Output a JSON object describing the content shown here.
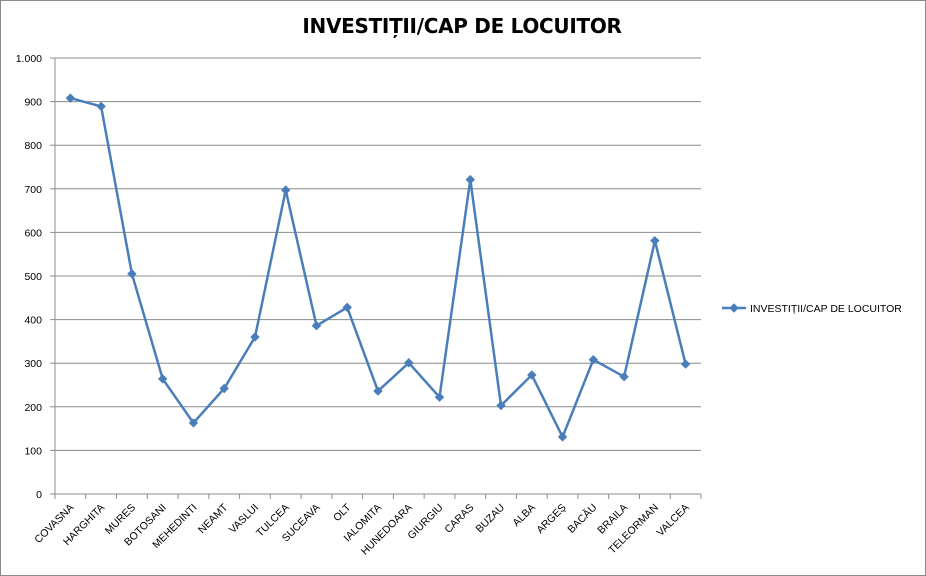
{
  "chart_data": {
    "type": "line",
    "title": "INVESTIȚII/CAP DE LOCUITOR",
    "categories": [
      "COVASNA",
      "HARGHITA",
      "MURES",
      "BOTOSANI",
      "MEHEDINTI",
      "NEAMT",
      "VASLUI",
      "TULCEA",
      "SUCEAVA",
      "OLT",
      "IALOMITA",
      "HUNEDOARA",
      "GIURGIU",
      "CARAS",
      "BUZAU",
      "ALBA",
      "ARGEȘ",
      "BACĂU",
      "BRAILA",
      "TELEORMAN",
      "VALCEA"
    ],
    "series": [
      {
        "name": "INVESTIȚII/CAP  DE LOCUITOR",
        "values": [
          908,
          889,
          505,
          264,
          163,
          242,
          360,
          697,
          386,
          428,
          236,
          301,
          222,
          721,
          203,
          273,
          131,
          308,
          269,
          581,
          298
        ],
        "color": "#4a7ebb"
      }
    ],
    "ylim": [
      0,
      1000
    ],
    "yticks": [
      0,
      100,
      200,
      300,
      400,
      500,
      600,
      700,
      800,
      900,
      1000
    ],
    "ytick_labels": [
      "0",
      "100",
      "200",
      "300",
      "400",
      "500",
      "600",
      "700",
      "800",
      "900",
      "1.000"
    ],
    "grid": true,
    "legend_position": "right"
  }
}
